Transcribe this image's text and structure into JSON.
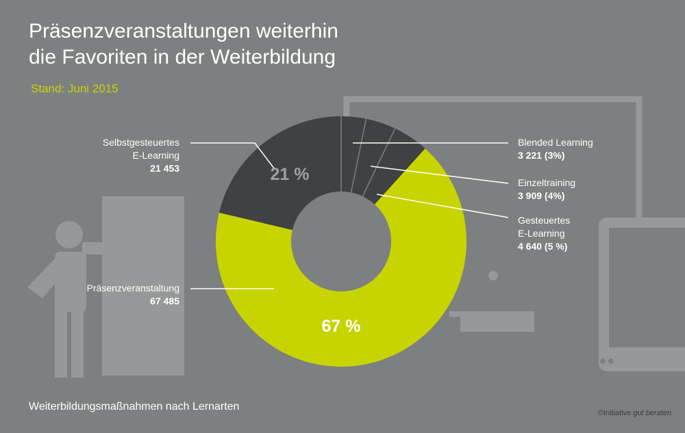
{
  "title_line1": "Präsenzveranstaltungen weiterhin",
  "title_line2": "die Favoriten in der Weiterbildung",
  "subtitle": "Stand: Juni 2015",
  "caption": "Weiterbildungsmaßnahmen nach Lernarten",
  "copyright_prefix": "©Initiative ",
  "copyright_italic": "gut beraten",
  "colors": {
    "background": "#7d8080",
    "accent": "#c8d400",
    "dark": "#3f4142",
    "hole": "#7d8080",
    "illustration": "#969999"
  },
  "labels": {
    "selbst_l1": "Selbstgesteuertes",
    "selbst_l2": "E-Learning",
    "selbst_val": "21 453",
    "praesenz_l1": "Präsenzveranstaltung",
    "praesenz_val": "67 485",
    "blended_l1": "Blended Learning",
    "blended_val": "3 221 (3%)",
    "einzel_l1": "Einzeltraining",
    "einzel_val": "3 909 (4%)",
    "gesteuert_l1": "Gesteuertes",
    "gesteuert_l2": "E-Learning",
    "gesteuert_val": "4 640 (5 %)"
  },
  "chart_data": {
    "type": "pie",
    "donut": true,
    "title": "Präsenzveranstaltungen weiterhin die Favoriten in der Weiterbildung",
    "subtitle": "Stand: Juni 2015",
    "slices": [
      {
        "name": "Blended Learning",
        "value": 3221,
        "percent_label": "3%",
        "color": "#3f4142"
      },
      {
        "name": "Einzeltraining",
        "value": 3909,
        "percent_label": "4%",
        "color": "#3f4142"
      },
      {
        "name": "Gesteuertes E-Learning",
        "value": 4640,
        "percent_label": "5 %",
        "color": "#3f4142"
      },
      {
        "name": "Präsenzveranstaltung",
        "value": 67485,
        "percent_label": "67 %",
        "color": "#c8d400"
      },
      {
        "name": "Selbstgesteuertes E-Learning",
        "value": 21453,
        "percent_label": "21 %",
        "color": "#3f4142"
      }
    ],
    "inner_labels": {
      "Selbstgesteuertes E-Learning": "21 %",
      "Präsenzveranstaltung": "67 %"
    }
  }
}
